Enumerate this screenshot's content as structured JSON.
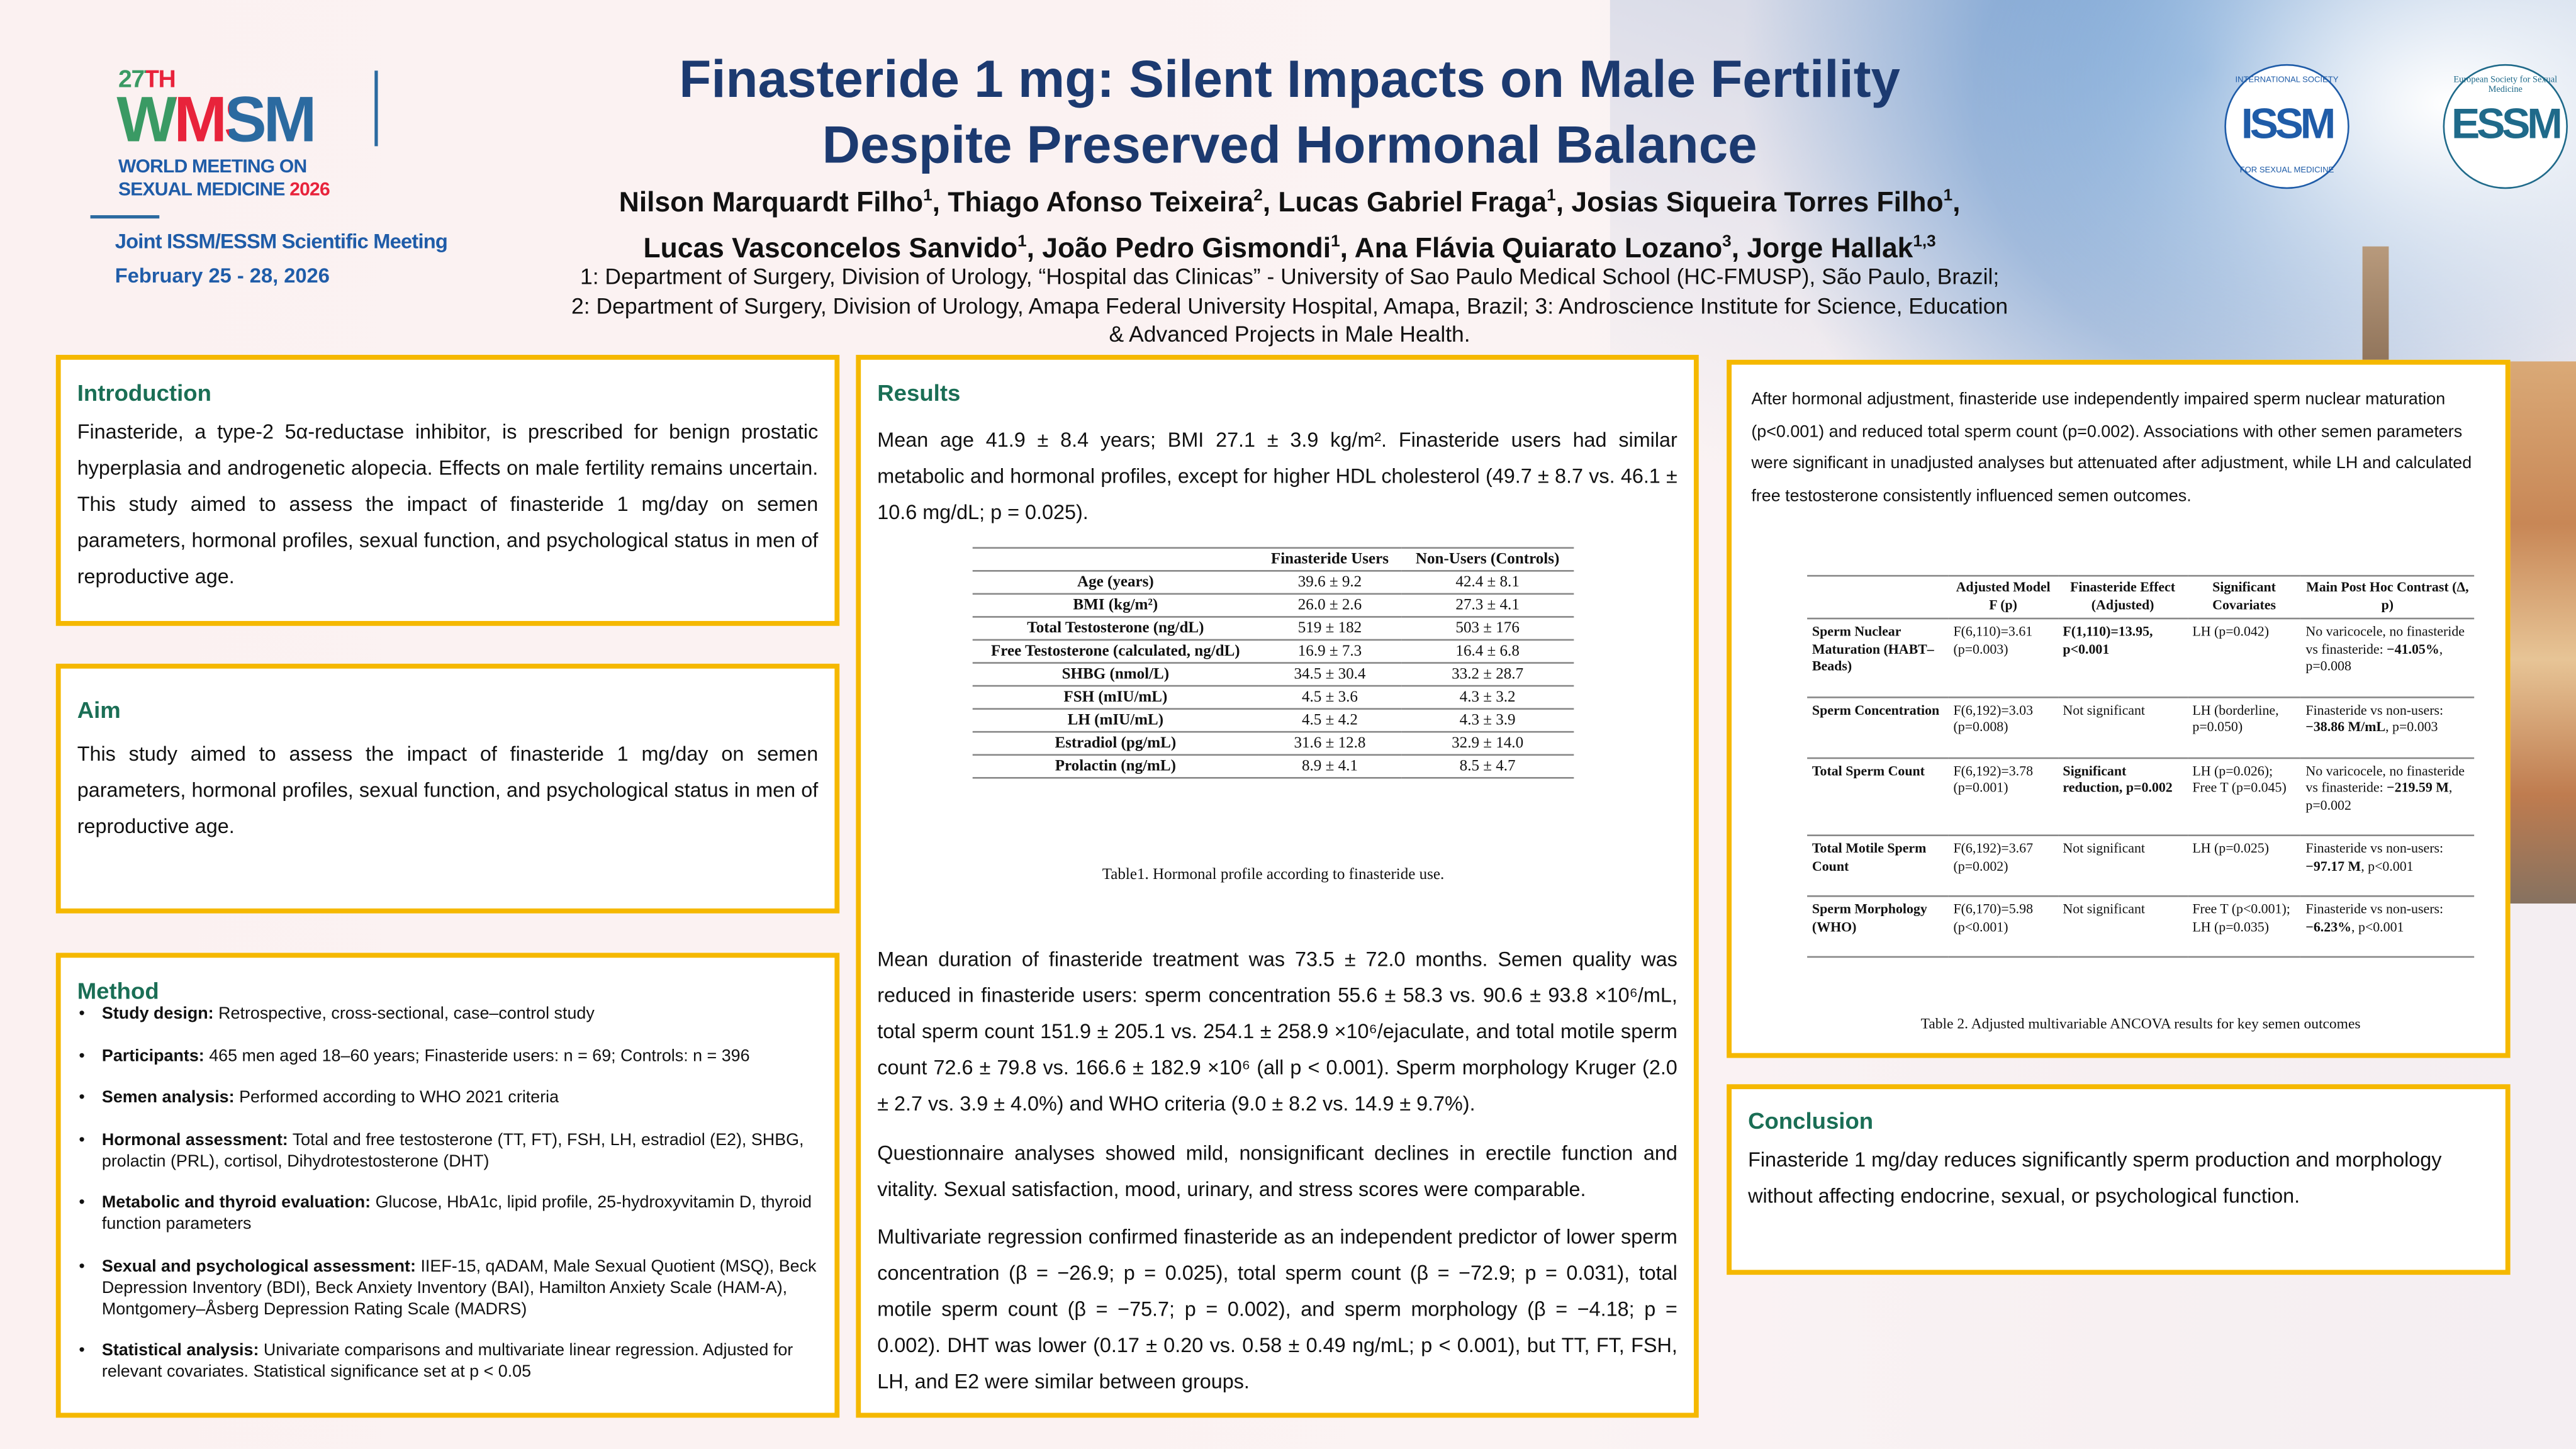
{
  "event": {
    "edition": "27TH",
    "acronym": "WMSM",
    "name_line1": "WORLD MEETING ON",
    "name_line2": "SEXUAL MEDICINE",
    "year": "2026",
    "joint": "Joint ISSM/ESSM Scientific Meeting",
    "dates": "February 25 - 28, 2026"
  },
  "logos": {
    "issm": {
      "mark": "ISSM",
      "ring_top": "INTERNATIONAL SOCIETY",
      "ring_bottom": "FOR SEXUAL MEDICINE"
    },
    "essm": {
      "mark": "ESSM",
      "ring": "European Society for Sexual Medicine"
    }
  },
  "title": {
    "line1": "Finasteride 1 mg: Silent Impacts on Male Fertility",
    "line2": "Despite Preserved Hormonal Balance"
  },
  "authors": [
    {
      "name": "Nilson Marquardt Filho",
      "aff": "1"
    },
    {
      "name": "Thiago Afonso Teixeira",
      "aff": "2"
    },
    {
      "name": "Lucas Gabriel Fraga",
      "aff": "1"
    },
    {
      "name": "Josias Siqueira Torres Filho",
      "aff": "1"
    },
    {
      "name": "Lucas Vasconcelos Sanvido",
      "aff": "1"
    },
    {
      "name": "João Pedro Gismondi",
      "aff": "1"
    },
    {
      "name": "Ana Flávia Quiarato Lozano",
      "aff": "3"
    },
    {
      "name": "Jorge Hallak",
      "aff": "1,3"
    }
  ],
  "affiliations": {
    "line1": "1: Department of Surgery, Division of Urology, “Hospital das Clinicas” - University of Sao Paulo Medical School (HC-FMUSP), São Paulo, Brazil;",
    "line2": "2: Department of Surgery, Division of Urology, Amapa Federal University Hospital, Amapa, Brazil; 3: Androscience Institute for Science, Education",
    "line3": "& Advanced Projects in Male Health."
  },
  "introduction": {
    "heading": "Introduction",
    "text": "Finasteride, a type-2 5α-reductase inhibitor, is prescribed for benign prostatic hyperplasia and androgenetic alopecia. Effects on male fertility remains uncertain. This study aimed to assess the impact of finasteride 1 mg/day on semen parameters, hormonal profiles, sexual function, and psychological status in men of reproductive age."
  },
  "aim": {
    "heading": "Aim",
    "text": "This study aimed to assess the impact of finasteride 1 mg/day on semen parameters, hormonal profiles, sexual function, and psychological status in men of reproductive age."
  },
  "method": {
    "heading": "Method",
    "bullet": "•",
    "items": [
      {
        "label": "Study design:",
        "text": " Retrospective, cross-sectional, case–control study"
      },
      {
        "label": "Participants:",
        "text": " 465 men aged 18–60 years; Finasteride users: n = 69; Controls: n = 396"
      },
      {
        "label": "Semen analysis:",
        "text": " Performed according to WHO 2021 criteria"
      },
      {
        "label": "Hormonal assessment:",
        "text": " Total and free testosterone (TT, FT), FSH, LH, estradiol (E2), SHBG, prolactin (PRL), cortisol, Dihydrotestosterone (DHT)"
      },
      {
        "label": "Metabolic and thyroid evaluation:",
        "text": " Glucose, HbA1c, lipid profile, 25-hydroxyvitamin D, thyroid function parameters"
      },
      {
        "label": "Sexual and psychological assessment:",
        "text": " IIEF-15, qADAM, Male Sexual Quotient (MSQ), Beck Depression Inventory (BDI), Beck Anxiety Inventory (BAI), Hamilton Anxiety Scale (HAM-A), Montgomery–Åsberg Depression Rating Scale (MADRS)"
      },
      {
        "label": "Statistical analysis:",
        "text": " Univariate comparisons and multivariate linear regression. Adjusted for relevant covariates. Statistical significance set at p < 0.05"
      }
    ]
  },
  "results": {
    "heading": "Results",
    "p1": "Mean age 41.9 ± 8.4 years; BMI 27.1 ± 3.9 kg/m². Finasteride users had similar metabolic and hormonal profiles, except for higher HDL cholesterol (49.7 ± 8.7 vs. 46.1 ± 10.6 mg/dL; p = 0.025).",
    "table1": {
      "headers": [
        "",
        "Finasteride Users",
        "Non-Users (Controls)"
      ],
      "rows": [
        [
          "Age (years)",
          "39.6 ± 9.2",
          "42.4 ± 8.1"
        ],
        [
          "BMI (kg/m²)",
          "26.0 ± 2.6",
          "27.3 ± 4.1"
        ],
        [
          "Total Testosterone (ng/dL)",
          "519 ± 182",
          "503 ± 176"
        ],
        [
          "Free Testosterone (calculated, ng/dL)",
          "16.9 ± 7.3",
          "16.4 ± 6.8"
        ],
        [
          "SHBG (nmol/L)",
          "34.5 ± 30.4",
          "33.2 ± 28.7"
        ],
        [
          "FSH (mIU/mL)",
          "4.5 ± 3.6",
          "4.3 ± 3.2"
        ],
        [
          "LH (mIU/mL)",
          "4.5 ± 4.2",
          "4.3 ± 3.9"
        ],
        [
          "Estradiol (pg/mL)",
          "31.6 ± 12.8",
          "32.9 ± 14.0"
        ],
        [
          "Prolactin (ng/mL)",
          "8.9 ± 4.1",
          "8.5 ± 4.7"
        ]
      ],
      "caption": "Table1. Hormonal profile according to finasteride use."
    },
    "p2": "Mean duration of finasteride treatment was 73.5 ± 72.0 months. Semen quality was reduced in finasteride users: sperm concentration 55.6 ± 58.3 vs. 90.6 ± 93.8 ×10⁶/mL, total sperm count 151.9 ± 205.1 vs. 254.1 ± 258.9 ×10⁶/ejaculate, and total motile sperm count 72.6 ± 79.8 vs. 166.6 ± 182.9 ×10⁶ (all p < 0.001). Sperm morphology Kruger (2.0 ± 2.7 vs. 3.9 ± 4.0%) and WHO criteria (9.0 ± 8.2 vs. 14.9 ± 9.7%).",
    "p3": "Questionnaire analyses showed mild, nonsignificant declines in erectile function and vitality. Sexual satisfaction, mood, urinary, and stress scores were comparable.",
    "p4": "Multivariate regression confirmed finasteride as an independent predictor of lower sperm concentration (β = −26.9; p = 0.025), total sperm count (β = −72.9; p = 0.031), total motile sperm count (β = −75.7; p = 0.002), and sperm morphology (β = −4.18; p = 0.002). DHT was lower (0.17 ± 0.20 vs. 0.58 ± 0.49 ng/mL; p < 0.001), but TT, FT, FSH, LH, and E2 were similar between groups."
  },
  "results_cont": {
    "text": "After hormonal adjustment, finasteride use independently impaired sperm nuclear maturation (p<0.001) and reduced total sperm count (p=0.002). Associations with other semen parameters were significant in unadjusted analyses but attenuated after adjustment, while LH and calculated free testosterone consistently influenced semen outcomes.",
    "table2": {
      "headers": [
        "",
        "Adjusted Model F (p)",
        "Finasteride Effect (Adjusted)",
        "Significant Covariates",
        "Main Post Hoc Contrast (Δ, p)"
      ],
      "rows": [
        {
          "outcome": "Sperm Nuclear Maturation (HABT–Beads)",
          "model": "F(6,110)=3.61 (p=0.003)",
          "effect": [
            [
              "F(1,110)=13.95, p<0.001",
              "b"
            ]
          ],
          "covariates": "LH (p=0.042)",
          "contrast": [
            [
              "No varicocele, no finasteride vs finasteride: ",
              ""
            ],
            [
              "−41.05%",
              "b"
            ],
            [
              ", p=0.008",
              ""
            ]
          ]
        },
        {
          "outcome": "Sperm Concentration",
          "model": "F(6,192)=3.03 (p=0.008)",
          "effect": [
            [
              "Not significant",
              ""
            ]
          ],
          "covariates": "LH (borderline, p=0.050)",
          "contrast": [
            [
              "Finasteride vs non-users: ",
              ""
            ],
            [
              "−38.86 M/mL",
              "b"
            ],
            [
              ", p=0.003",
              ""
            ]
          ]
        },
        {
          "outcome": "Total Sperm Count",
          "model": "F(6,192)=3.78 (p=0.001)",
          "effect": [
            [
              "Significant reduction, p=0.002",
              "b"
            ]
          ],
          "covariates": "LH (p=0.026); Free T (p=0.045)",
          "contrast": [
            [
              "No varicocele, no finasteride vs finasteride: ",
              ""
            ],
            [
              "−219.59 M",
              "b"
            ],
            [
              ", p=0.002",
              ""
            ]
          ]
        },
        {
          "outcome": "Total Motile Sperm Count",
          "model": "F(6,192)=3.67 (p=0.002)",
          "effect": [
            [
              "Not significant",
              ""
            ]
          ],
          "covariates": "LH (p=0.025)",
          "contrast": [
            [
              "Finasteride vs non-users: ",
              ""
            ],
            [
              "−97.17 M",
              "b"
            ],
            [
              ", p<0.001",
              ""
            ]
          ]
        },
        {
          "outcome": "Sperm Morphology (WHO)",
          "model": "F(6,170)=5.98 (p<0.001)",
          "effect": [
            [
              "Not significant",
              ""
            ]
          ],
          "covariates": "Free T (p<0.001); LH (p=0.035)",
          "contrast": [
            [
              "Finasteride vs non-users: ",
              ""
            ],
            [
              "−6.23%",
              "b"
            ],
            [
              ", p<0.001",
              ""
            ]
          ]
        }
      ],
      "caption": "Table 2. Adjusted multivariable ANCOVA results for key semen outcomes"
    }
  },
  "conclusion": {
    "heading": "Conclusion",
    "text": "Finasteride 1 mg/day reduces significantly sperm production and morphology without affecting endocrine, sexual, or psychological function."
  },
  "colors": {
    "box_border": "#f5b800",
    "heading": "#1a6e55",
    "title": "#1c3a70",
    "wmsm_green": "#3a9a64",
    "wmsm_red": "#e8233b",
    "wmsm_blue": "#2b6aa0"
  }
}
